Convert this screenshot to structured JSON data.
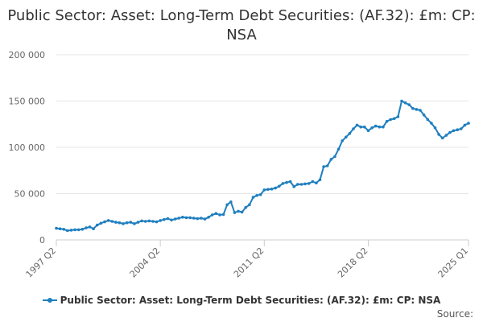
{
  "colors": {
    "series": "#1f7fbf",
    "grid": "#e6e6e6",
    "axis": "#cccccc"
  },
  "credits": {
    "label": "Source:"
  },
  "chart_data": {
    "type": "line",
    "title": "Public Sector: Asset: Long-Term Debt Securities: (AF.32): £m: CP: NSA",
    "xlabel": "",
    "ylabel": "",
    "ylim": [
      0,
      200000
    ],
    "yticks": [
      0,
      50000,
      100000,
      150000,
      200000
    ],
    "ytick_labels": [
      "0",
      "50 000",
      "100 000",
      "150 000",
      "200 000"
    ],
    "xticks": [
      {
        "label": "1997 Q2",
        "index": 0
      },
      {
        "label": "2004 Q2",
        "index": 28
      },
      {
        "label": "2011 Q2",
        "index": 56
      },
      {
        "label": "2018 Q2",
        "index": 84
      },
      {
        "label": "2025 Q1",
        "index": 111
      }
    ],
    "grid": true,
    "legend": "bottom",
    "series": [
      {
        "name": "Public Sector: Asset: Long-Term Debt Securities: (AF.32): £m: CP: NSA",
        "start": "1997 Q2",
        "values": [
          12500,
          12000,
          11500,
          10000,
          10500,
          11000,
          11000,
          11500,
          13000,
          14000,
          12000,
          16000,
          18000,
          19500,
          21000,
          20000,
          19000,
          18500,
          17500,
          18500,
          19000,
          17500,
          19000,
          20500,
          20000,
          20500,
          20000,
          19500,
          21000,
          22000,
          23000,
          21500,
          22500,
          23500,
          24500,
          24000,
          24000,
          23500,
          23000,
          23500,
          22500,
          24500,
          27000,
          28500,
          27000,
          27500,
          38000,
          41000,
          29500,
          31000,
          30000,
          35000,
          38000,
          46000,
          48000,
          49000,
          54000,
          54500,
          55000,
          56000,
          58000,
          61000,
          62000,
          63000,
          57500,
          60000,
          60000,
          60500,
          61000,
          63000,
          61500,
          65000,
          79000,
          80000,
          87000,
          90000,
          98000,
          107000,
          111000,
          115000,
          120000,
          124000,
          122000,
          122000,
          118000,
          121000,
          123000,
          122000,
          122000,
          128000,
          130000,
          131000,
          133000,
          150000,
          148000,
          146000,
          142000,
          141000,
          140000,
          135000,
          130000,
          126000,
          121000,
          114000,
          110000,
          113000,
          116000,
          118000,
          119000,
          120000,
          124000,
          126000
        ]
      }
    ]
  }
}
